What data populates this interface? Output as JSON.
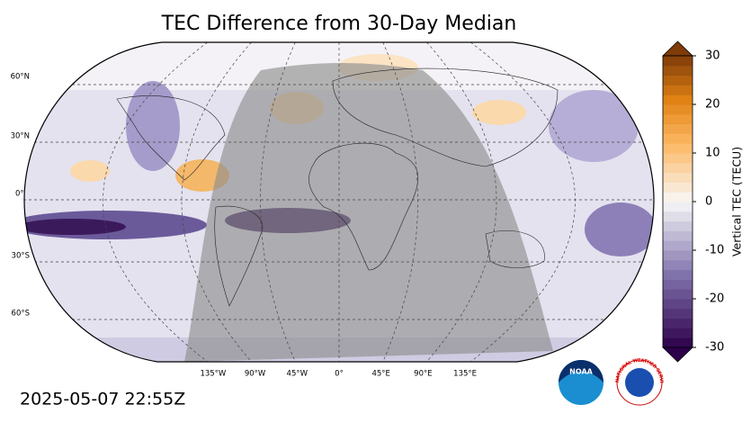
{
  "title": "TEC Difference from 30-Day Median",
  "lat_labels": [
    "60°N",
    "30°N",
    "0°",
    "30°S",
    "60°S"
  ],
  "lon_labels": [
    "135°W",
    "90°W",
    "45°W",
    "0°",
    "45°E",
    "90°E",
    "135°E"
  ],
  "colorbar": {
    "label": "Vertical TEC (TECU)",
    "lim": [
      -30,
      30
    ],
    "ticks": [
      30,
      20,
      10,
      0,
      -10,
      -20,
      -30
    ]
  },
  "timestamp": "2025-05-07 22:55Z",
  "logos": {
    "noaa": "NOAA",
    "nws": "NATIONAL WEATHER SERVICE"
  }
}
